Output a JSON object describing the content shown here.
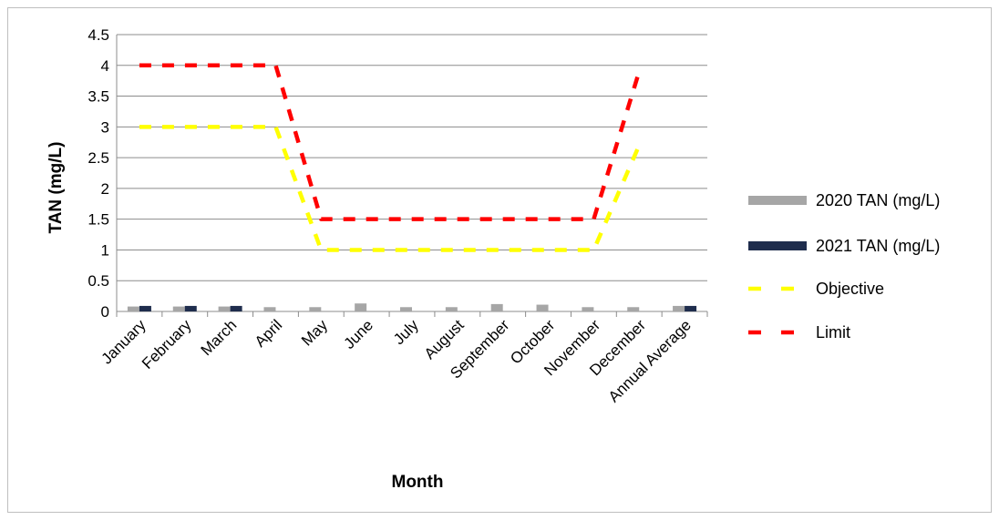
{
  "chart_data": {
    "type": "bar",
    "categories": [
      "January",
      "February",
      "March",
      "April",
      "May",
      "June",
      "July",
      "August",
      "September",
      "October",
      "November",
      "December",
      "Annual Average"
    ],
    "series": [
      {
        "name": "2020 TAN (mg/L)",
        "kind": "bar",
        "color": "#a6a6a6",
        "values": [
          0.08,
          0.08,
          0.08,
          0.07,
          0.07,
          0.13,
          0.07,
          0.07,
          0.12,
          0.11,
          0.07,
          0.07,
          0.09
        ]
      },
      {
        "name": "2021 TAN (mg/L)",
        "kind": "bar",
        "color": "#1f2d4d",
        "values": [
          0.09,
          0.09,
          0.09,
          null,
          null,
          null,
          null,
          null,
          null,
          null,
          null,
          null,
          0.09
        ]
      },
      {
        "name": "Objective",
        "kind": "line",
        "style": "dashed",
        "color": "#ffff00",
        "values": [
          3,
          3,
          3,
          3,
          1,
          1,
          1,
          1,
          1,
          1,
          1,
          2.7,
          null
        ]
      },
      {
        "name": "Limit",
        "kind": "line",
        "style": "dashed",
        "color": "#ff0000",
        "values": [
          4,
          4,
          4,
          4,
          1.5,
          1.5,
          1.5,
          1.5,
          1.5,
          1.5,
          1.5,
          3.9,
          null
        ]
      }
    ],
    "xlabel": "Month",
    "ylabel": "TAN (mg/L)",
    "ylim": [
      0,
      4.5
    ],
    "yticks": [
      "0",
      "0.5",
      "1",
      "1.5",
      "2",
      "2.5",
      "3",
      "3.5",
      "4",
      "4.5"
    ],
    "grid": true,
    "legend": "right"
  }
}
